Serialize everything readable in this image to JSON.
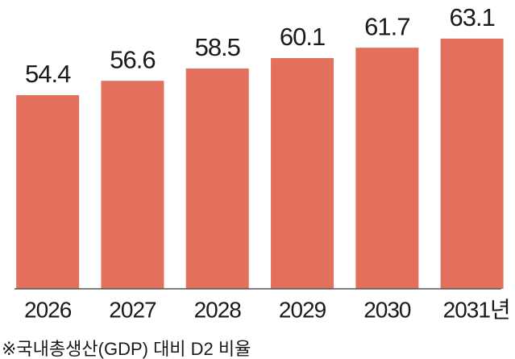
{
  "chart_data": {
    "type": "bar",
    "categories": [
      "2026",
      "2027",
      "2028",
      "2029",
      "2030",
      "2031년"
    ],
    "values": [
      54.4,
      56.6,
      58.5,
      60.1,
      61.7,
      63.1
    ],
    "color": "#e2705c",
    "ylim": [
      24.6,
      67.8
    ],
    "note": "※국내총생산(GDP) 대비 D2 비율"
  }
}
